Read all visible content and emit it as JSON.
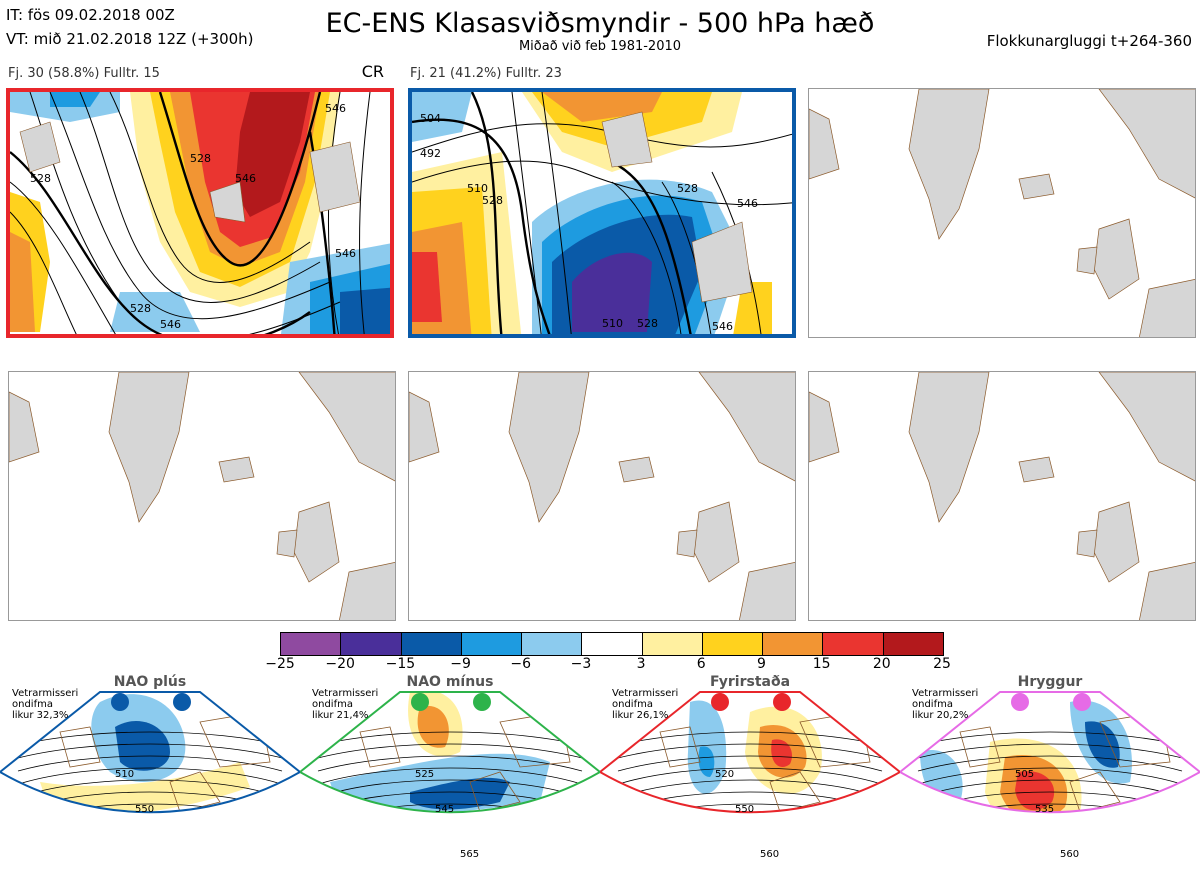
{
  "header": {
    "it": "IT: fös 09.02.2018 00Z",
    "vt": "VT: mið 21.02.2018 12Z  (+300h)",
    "title": "EC-ENS Klasasviðsmyndir - 500 hPa hæð",
    "subtitle": "Miðað við feb 1981-2010",
    "window": "Flokkunargluggi t+264-360"
  },
  "clusters": [
    {
      "label": "Fj. 30 (58.8%)   Fulltr. 15",
      "tag": "CR",
      "border": "#e8262b"
    },
    {
      "label": "Fj. 21 (41.2%)   Fulltr. 23",
      "tag": "",
      "border": "#0a5aa8"
    }
  ],
  "colorbar": {
    "colors": [
      "#8f4aa0",
      "#4a2f9a",
      "#0a5aa8",
      "#1e9be0",
      "#8ccbee",
      "#ffffff",
      "#fff0a0",
      "#ffd21e",
      "#f29533",
      "#ea3530",
      "#b3191c"
    ],
    "ticks": [
      "−25",
      "−20",
      "−15",
      "−9",
      "−6",
      "−3",
      "3",
      "6",
      "9",
      "15",
      "20",
      "25"
    ]
  },
  "regimes": [
    {
      "name": "NAO plús",
      "info": [
        "Vetrarmisseri",
        "ondifma",
        "likur 32,3%"
      ],
      "color": "#0a5aa8",
      "contours": [
        "510",
        "550"
      ]
    },
    {
      "name": "NAO mínus",
      "info": [
        "Vetrarmisseri",
        "ondifma",
        "likur 21,4%"
      ],
      "color": "#2db34a",
      "contours": [
        "525",
        "545",
        "565"
      ]
    },
    {
      "name": "Fyrirstaða",
      "info": [
        "Vetrarmisseri",
        "ondifma",
        "likur 26,1%"
      ],
      "color": "#e8262b",
      "contours": [
        "520",
        "550",
        "560"
      ]
    },
    {
      "name": "Hryggur",
      "info": [
        "Vetrarmisseri",
        "ondifma",
        "likur 20,2%"
      ],
      "color": "#e66be6",
      "contours": [
        "505",
        "535",
        "560"
      ]
    }
  ],
  "map_labels": {
    "p1": [
      "528",
      "546",
      "528",
      "546",
      "546",
      "528",
      "546"
    ],
    "p2": [
      "504",
      "492",
      "510",
      "528",
      "528",
      "546",
      "510",
      "528",
      "546"
    ]
  }
}
